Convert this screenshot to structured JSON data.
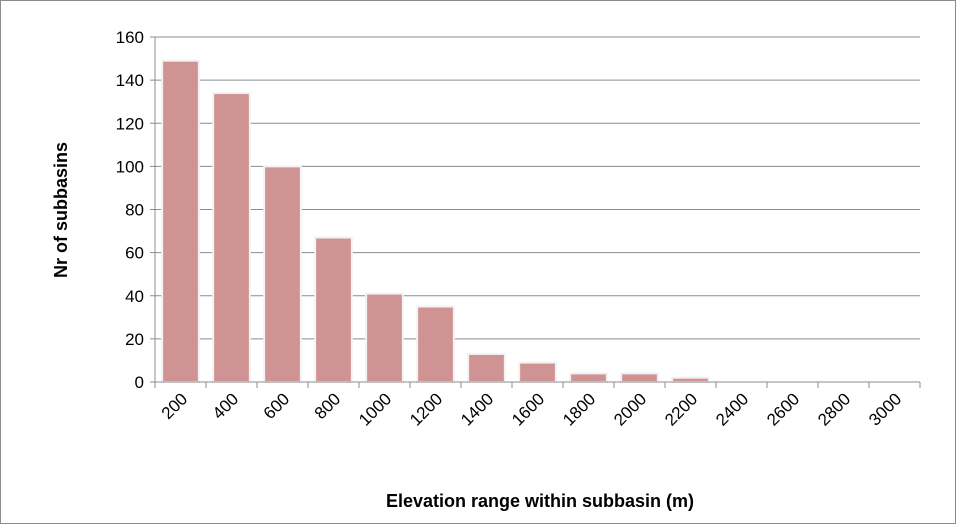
{
  "chart_data": {
    "type": "bar",
    "title": "",
    "xlabel": "Elevation range within subbasin  (m)",
    "ylabel": "Nr of subbasins",
    "categories": [
      "200",
      "400",
      "600",
      "800",
      "1000",
      "1200",
      "1400",
      "1600",
      "1800",
      "2000",
      "2200",
      "2400",
      "2600",
      "2800",
      "3000"
    ],
    "values": [
      149,
      134,
      100,
      67,
      41,
      35,
      13,
      9,
      4,
      4,
      2,
      0,
      0,
      0,
      0
    ],
    "ylim": [
      0,
      160
    ],
    "yticks": [
      "0",
      "20",
      "40",
      "60",
      "80",
      "100",
      "120",
      "140",
      "160"
    ],
    "grid": true,
    "legend": "none",
    "bar_color": "#d09393",
    "bar_edge_color": "#f2f2f2",
    "grid_color": "#8c8c8c"
  }
}
